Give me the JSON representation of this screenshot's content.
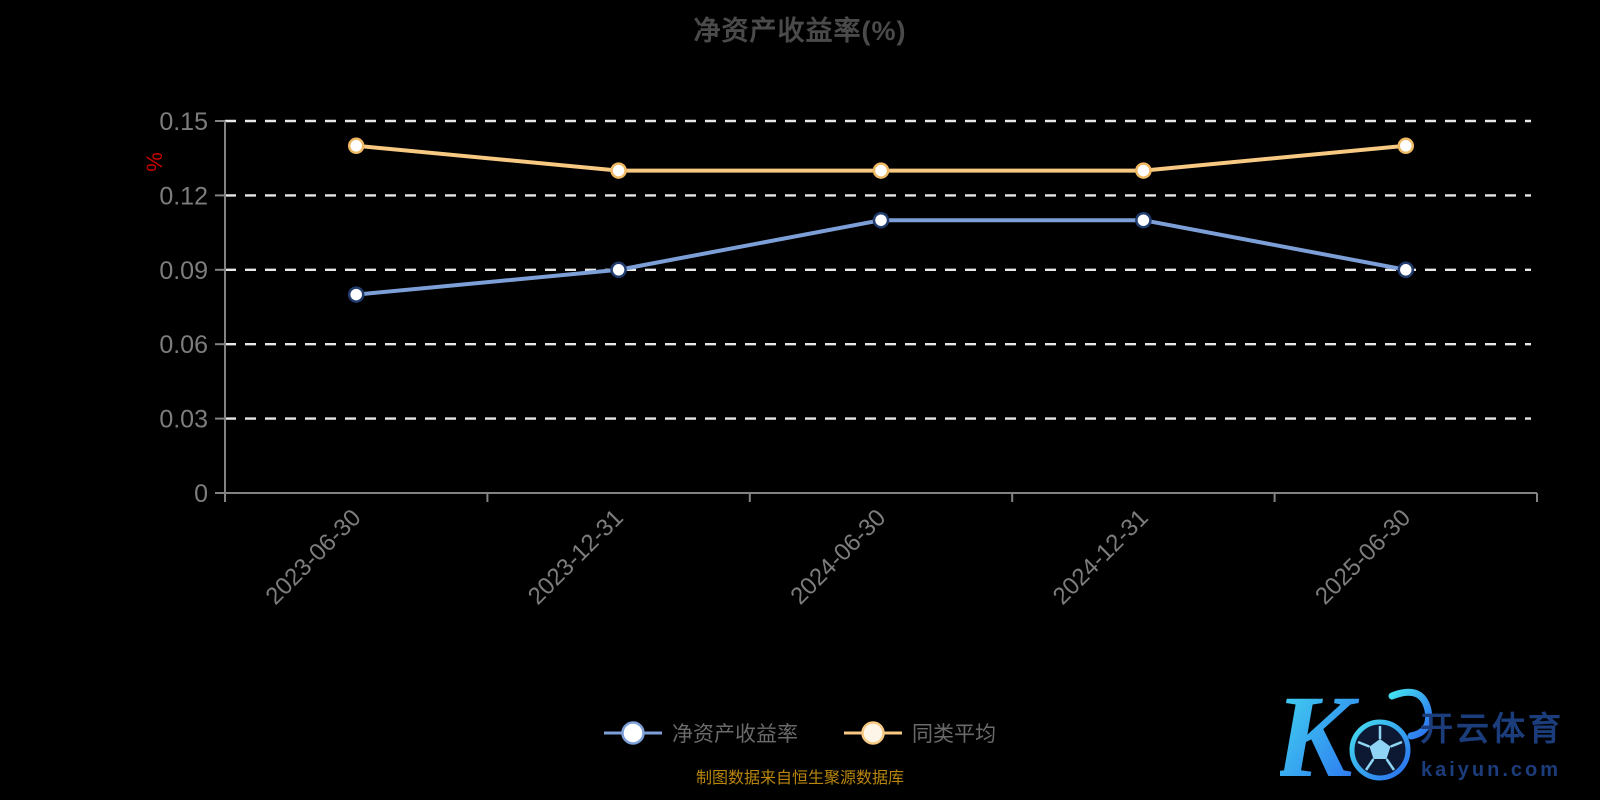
{
  "title": "净资产收益率(%)",
  "y_axis_name": "%",
  "source_note": "制图数据来自恒生聚源数据库",
  "legend": [
    {
      "label": "净资产收益率",
      "color": "#7d9fd8",
      "marker_fill": "#ffffff"
    },
    {
      "label": "同类平均",
      "color": "#f7c983",
      "marker_fill": "#fdf6e8"
    }
  ],
  "watermark": {
    "monogram": "K",
    "brand": "开云体育",
    "domain": "kaiyun.com"
  },
  "chart_data": {
    "type": "line",
    "categories": [
      "2023-06-30",
      "2023-12-31",
      "2024-06-30",
      "2024-12-31",
      "2025-06-30"
    ],
    "series": [
      {
        "name": "净资产收益率",
        "values": [
          0.08,
          0.09,
          0.11,
          0.11,
          0.09
        ],
        "color": "#7d9fd8",
        "marker_fill": "#ffffff",
        "marker_stroke": "#223c6e"
      },
      {
        "name": "同类平均",
        "values": [
          0.14,
          0.13,
          0.13,
          0.13,
          0.14
        ],
        "color": "#f7c983",
        "marker_fill": "#ffffff",
        "marker_stroke": "#efb963"
      }
    ],
    "ylabel": "%",
    "xlabel": "",
    "ylim": [
      0,
      0.15
    ],
    "yticks": [
      0,
      0.03,
      0.06,
      0.09,
      0.12,
      0.15
    ],
    "ytick_labels": [
      "0",
      "0.03",
      "0.06",
      "0.09",
      "0.12",
      "0.15"
    ],
    "grid": "dashed-horizontal",
    "legend_position": "bottom"
  },
  "colors": {
    "background": "#000000",
    "title": "#4a4a4a",
    "axis_line": "#828282",
    "tick_label": "#7d7d7d",
    "gridline": "#e8e8e8",
    "y_axis_name": "#cc0000",
    "source_note": "#b8860b",
    "legend_text": "#6a6a6a",
    "logo_gradient_start": "#45e0ef",
    "logo_gradient_end": "#2a6cf0",
    "logo_text": "#1c3d7b"
  }
}
